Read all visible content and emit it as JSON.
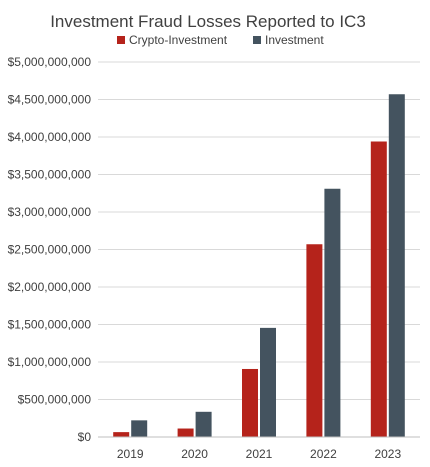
{
  "chart_data": {
    "type": "bar",
    "title": "Investment Fraud Losses Reported to IC3",
    "categories": [
      "2019",
      "2020",
      "2021",
      "2022",
      "2023"
    ],
    "series": [
      {
        "name": "Crypto-Investment",
        "color": "#b5231b",
        "values": [
          65000000,
          113000000,
          907000000,
          2570000000,
          3940000000
        ]
      },
      {
        "name": "Investment",
        "color": "#44535f",
        "values": [
          222000000,
          336000000,
          1455000000,
          3310000000,
          4570000000
        ]
      }
    ],
    "ylim": [
      0,
      5000000000
    ],
    "yticks": [
      0,
      500000000,
      1000000000,
      1500000000,
      2000000000,
      2500000000,
      3000000000,
      3500000000,
      4000000000,
      4500000000,
      5000000000
    ],
    "ytick_labels": [
      "$0",
      "$500,000,000",
      "$1,000,000,000",
      "$1,500,000,000",
      "$2,000,000,000",
      "$2,500,000,000",
      "$3,000,000,000",
      "$3,500,000,000",
      "$4,000,000,000",
      "$4,500,000,000",
      "$5,000,000,000"
    ],
    "grid": true,
    "legend_position": "top-center",
    "colors": {
      "text": "#404040",
      "grid": "#d9d9d9",
      "axis": "#bfbfbf"
    }
  }
}
